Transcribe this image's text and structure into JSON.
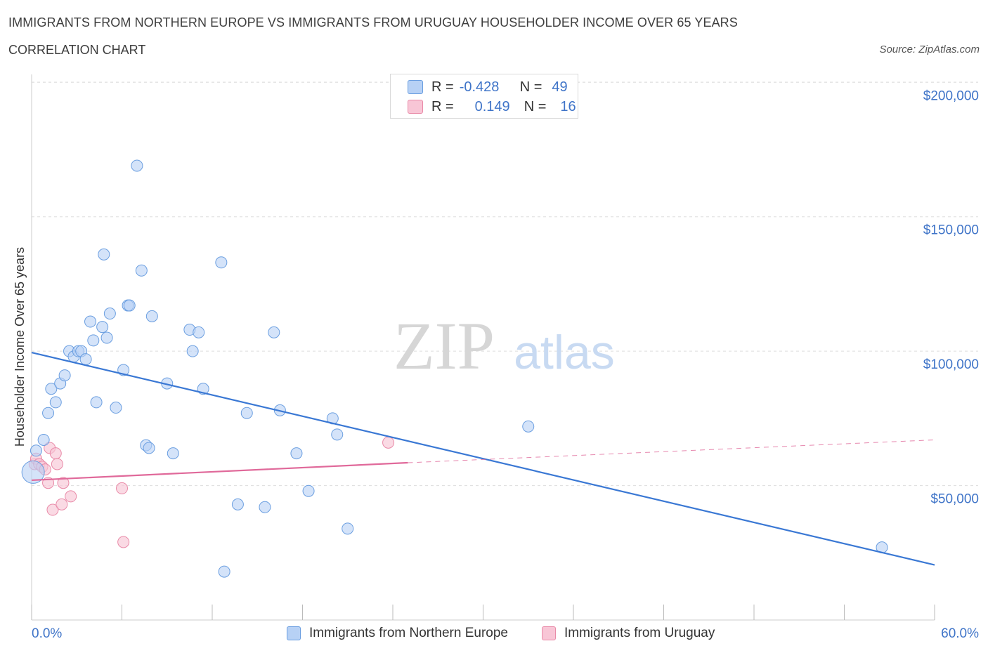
{
  "header": {
    "title": "IMMIGRANTS FROM NORTHERN EUROPE VS IMMIGRANTS FROM URUGUAY HOUSEHOLDER INCOME OVER 65 YEARS",
    "subtitle": "CORRELATION CHART",
    "source": "Source: ZipAtlas.com"
  },
  "legend": {
    "rows": [
      {
        "r_label": "R =",
        "r_value": "-0.428",
        "n_label": "N =",
        "n_value": "49"
      },
      {
        "r_label": "R =",
        "r_value": "0.149",
        "n_label": "N =",
        "n_value": "16"
      }
    ]
  },
  "watermark": {
    "zip": "ZIP",
    "atlas": "atlas"
  },
  "colors": {
    "series1_fill": "#b7d1f5",
    "series1_stroke": "#6a9ee0",
    "series1_line": "#3a78d4",
    "series2_fill": "#f8c6d6",
    "series2_stroke": "#e98aa8",
    "series2_line": "#e0699a",
    "axis_text": "#3f74c8",
    "grid": "#dddddd"
  },
  "chart_data": {
    "type": "scatter",
    "title": "IMMIGRANTS FROM NORTHERN EUROPE VS IMMIGRANTS FROM URUGUAY HOUSEHOLDER INCOME OVER 65 YEARS",
    "xlabel": "",
    "ylabel": "Householder Income Over 65 years",
    "xlim": [
      0,
      60
    ],
    "ylim": [
      0,
      210000
    ],
    "x_tick_labels": [
      "0.0%",
      "60.0%"
    ],
    "y_ticks": [
      50000,
      100000,
      150000,
      200000
    ],
    "y_tick_labels": [
      "$50,000",
      "$100,000",
      "$150,000",
      "$200,000"
    ],
    "grid": true,
    "series": [
      {
        "name": "Immigrants from Northern Europe",
        "r": -0.428,
        "n": 49,
        "points": [
          [
            0.1,
            55000
          ],
          [
            0.3,
            63000
          ],
          [
            0.8,
            67000
          ],
          [
            1.1,
            77000
          ],
          [
            1.3,
            86000
          ],
          [
            1.6,
            81000
          ],
          [
            1.9,
            88000
          ],
          [
            2.2,
            91000
          ],
          [
            2.5,
            100000
          ],
          [
            2.8,
            98000
          ],
          [
            3.1,
            100000
          ],
          [
            3.3,
            100000
          ],
          [
            3.6,
            97000
          ],
          [
            3.9,
            111000
          ],
          [
            4.1,
            104000
          ],
          [
            4.3,
            81000
          ],
          [
            4.7,
            109000
          ],
          [
            4.8,
            136000
          ],
          [
            5.0,
            105000
          ],
          [
            5.2,
            114000
          ],
          [
            5.6,
            79000
          ],
          [
            6.1,
            93000
          ],
          [
            6.4,
            117000
          ],
          [
            6.5,
            117000
          ],
          [
            7.0,
            169000
          ],
          [
            7.3,
            130000
          ],
          [
            7.6,
            65000
          ],
          [
            7.8,
            64000
          ],
          [
            8.0,
            113000
          ],
          [
            9.0,
            88000
          ],
          [
            9.4,
            62000
          ],
          [
            10.5,
            108000
          ],
          [
            10.7,
            100000
          ],
          [
            11.1,
            107000
          ],
          [
            11.4,
            86000
          ],
          [
            12.6,
            133000
          ],
          [
            12.8,
            18000
          ],
          [
            13.7,
            43000
          ],
          [
            14.3,
            77000
          ],
          [
            15.5,
            42000
          ],
          [
            16.1,
            107000
          ],
          [
            16.5,
            78000
          ],
          [
            17.6,
            62000
          ],
          [
            18.4,
            48000
          ],
          [
            20.0,
            75000
          ],
          [
            20.3,
            69000
          ],
          [
            21.0,
            34000
          ],
          [
            33.0,
            72000
          ],
          [
            56.5,
            27000
          ]
        ],
        "trend": {
          "x": [
            0,
            60
          ],
          "y": [
            99500,
            20500
          ]
        }
      },
      {
        "name": "Immigrants from Uruguay",
        "r": 0.149,
        "n": 16,
        "points": [
          [
            0.2,
            58000
          ],
          [
            0.3,
            60000
          ],
          [
            0.5,
            58000
          ],
          [
            0.7,
            57000
          ],
          [
            0.9,
            56000
          ],
          [
            1.1,
            51000
          ],
          [
            1.2,
            64000
          ],
          [
            1.4,
            41000
          ],
          [
            1.6,
            62000
          ],
          [
            1.7,
            58000
          ],
          [
            2.0,
            43000
          ],
          [
            2.1,
            51000
          ],
          [
            2.6,
            46000
          ],
          [
            6.0,
            49000
          ],
          [
            6.1,
            29000
          ],
          [
            23.7,
            66000
          ]
        ],
        "trend_solid": {
          "x": [
            0,
            25
          ],
          "y": [
            52000,
            58500
          ]
        },
        "trend_dashed": {
          "x": [
            25,
            60
          ],
          "y": [
            58500,
            67000
          ]
        }
      }
    ]
  }
}
